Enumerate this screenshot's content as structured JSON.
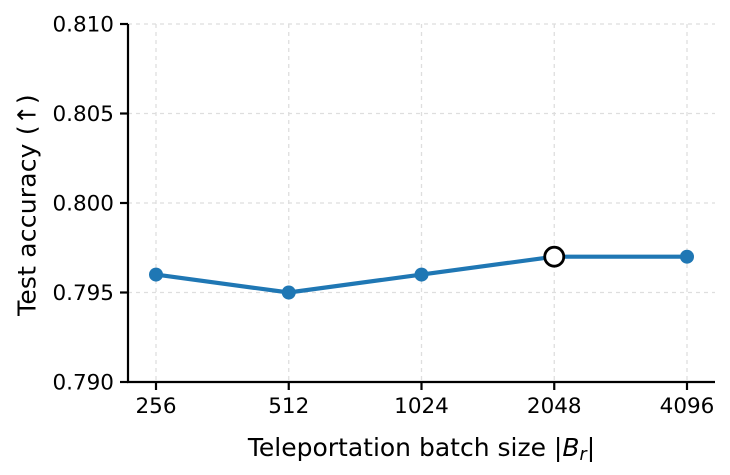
{
  "chart_data": {
    "type": "line",
    "title": "",
    "xlabel": "Teleportation batch size |B_r|",
    "xlabel_parts": {
      "prefix": "Teleportation batch size |",
      "var": "B",
      "sub": "r",
      "suffix": "|"
    },
    "ylabel": "Test accuracy (↑)",
    "categories": [
      "256",
      "512",
      "1024",
      "2048",
      "4096"
    ],
    "x": [
      256,
      512,
      1024,
      2048,
      4096
    ],
    "series": [
      {
        "name": "test-accuracy",
        "values": [
          0.796,
          0.795,
          0.796,
          0.797,
          0.797
        ]
      }
    ],
    "highlight_index": 3,
    "ylim": [
      0.79,
      0.81
    ],
    "yticks": [
      0.79,
      0.795,
      0.8,
      0.805,
      0.81
    ],
    "ytick_labels": [
      "0.790",
      "0.795",
      "0.800",
      "0.805",
      "0.810"
    ],
    "grid": true,
    "grid_style": "dashed",
    "legend": "none",
    "x_scale": "log2-categorical",
    "colors": {
      "line": "#1f77b4",
      "marker": "#1f77b4",
      "highlight_fill": "#ffffff",
      "highlight_stroke": "#000000",
      "grid": "#dedede",
      "axis": "#000000",
      "text": "#000000"
    }
  }
}
